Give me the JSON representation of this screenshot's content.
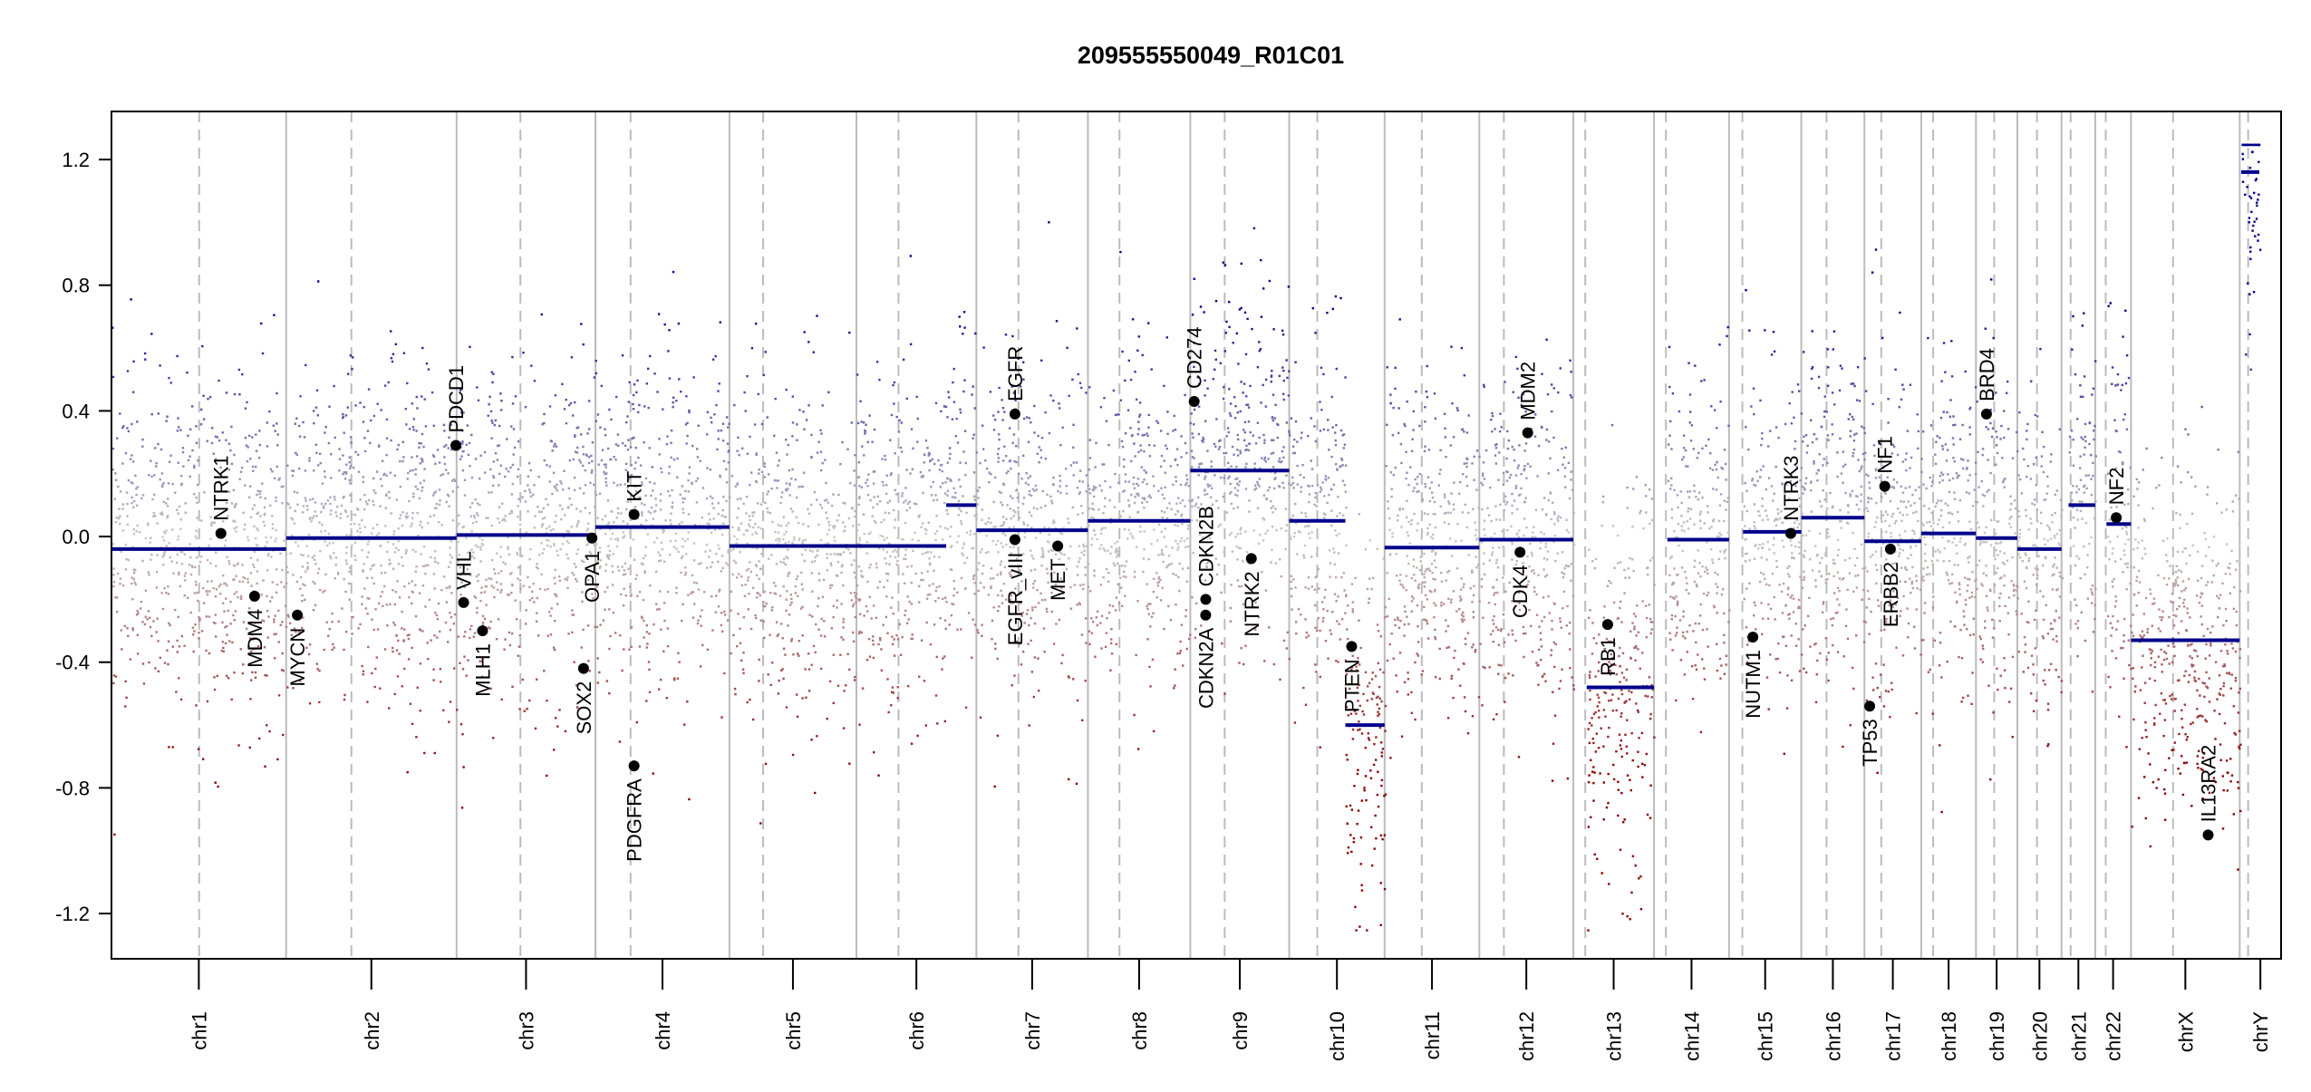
{
  "chart_data": {
    "type": "scatter",
    "title": "209555550049_R01C01",
    "xlabel": "",
    "ylabel": "",
    "ylim": [
      -1.344,
      1.353
    ],
    "yticks": [
      "1.2",
      "0.8",
      "0.4",
      "0.0",
      "-0.4",
      "-0.8",
      "-1.2"
    ],
    "ytick_values": [
      1.2,
      0.8,
      0.4,
      0.0,
      -0.4,
      -0.8,
      -1.2
    ],
    "colors": {
      "gain": "#00008b",
      "neutral": "#c8c8c8",
      "loss": "#8b0000",
      "segment": "#00008b",
      "gene": "#000000"
    },
    "chromosomes": [
      {
        "name": "chr1",
        "length_mb": 249,
        "centromere_mb": 125
      },
      {
        "name": "chr2",
        "length_mb": 243,
        "centromere_mb": 93
      },
      {
        "name": "chr3",
        "length_mb": 198,
        "centromere_mb": 91
      },
      {
        "name": "chr4",
        "length_mb": 191,
        "centromere_mb": 50
      },
      {
        "name": "chr5",
        "length_mb": 181,
        "centromere_mb": 48
      },
      {
        "name": "chr6",
        "length_mb": 171,
        "centromere_mb": 60
      },
      {
        "name": "chr7",
        "length_mb": 159,
        "centromere_mb": 60
      },
      {
        "name": "chr8",
        "length_mb": 146,
        "centromere_mb": 45
      },
      {
        "name": "chr9",
        "length_mb": 141,
        "centromere_mb": 49
      },
      {
        "name": "chr10",
        "length_mb": 136,
        "centromere_mb": 40
      },
      {
        "name": "chr11",
        "length_mb": 135,
        "centromere_mb": 53
      },
      {
        "name": "chr12",
        "length_mb": 134,
        "centromere_mb": 35
      },
      {
        "name": "chr13",
        "length_mb": 115,
        "centromere_mb": 17
      },
      {
        "name": "chr14",
        "length_mb": 107,
        "centromere_mb": 17
      },
      {
        "name": "chr15",
        "length_mb": 103,
        "centromere_mb": 19
      },
      {
        "name": "chr16",
        "length_mb": 90,
        "centromere_mb": 36
      },
      {
        "name": "chr17",
        "length_mb": 81,
        "centromere_mb": 24
      },
      {
        "name": "chr18",
        "length_mb": 78,
        "centromere_mb": 17
      },
      {
        "name": "chr19",
        "length_mb": 59,
        "centromere_mb": 26
      },
      {
        "name": "chr20",
        "length_mb": 63,
        "centromere_mb": 28
      },
      {
        "name": "chr21",
        "length_mb": 48,
        "centromere_mb": 13
      },
      {
        "name": "chr22",
        "length_mb": 51,
        "centromere_mb": 15
      },
      {
        "name": "chrX",
        "length_mb": 155,
        "centromere_mb": 60
      },
      {
        "name": "chrY",
        "length_mb": 59,
        "centromere_mb": 12
      }
    ],
    "segments": [
      {
        "chr": "chr1",
        "start": 0,
        "end": 249,
        "value": -0.04
      },
      {
        "chr": "chr2",
        "start": 0,
        "end": 243,
        "value": -0.005
      },
      {
        "chr": "chr3",
        "start": 0,
        "end": 198,
        "value": 0.005
      },
      {
        "chr": "chr4",
        "start": 0,
        "end": 191,
        "value": 0.03
      },
      {
        "chr": "chr5",
        "start": 0,
        "end": 181,
        "value": -0.03
      },
      {
        "chr": "chr6",
        "start": 0,
        "end": 128,
        "value": -0.03
      },
      {
        "chr": "chr6",
        "start": 128,
        "end": 171,
        "value": 0.1
      },
      {
        "chr": "chr7",
        "start": 0,
        "end": 159,
        "value": 0.02
      },
      {
        "chr": "chr8",
        "start": 0,
        "end": 146,
        "value": 0.05
      },
      {
        "chr": "chr9",
        "start": 0,
        "end": 141,
        "value": 0.21
      },
      {
        "chr": "chr10",
        "start": 0,
        "end": 80,
        "value": 0.05
      },
      {
        "chr": "chr10",
        "start": 80,
        "end": 136,
        "value": -0.6
      },
      {
        "chr": "chr11",
        "start": 0,
        "end": 135,
        "value": -0.035
      },
      {
        "chr": "chr12",
        "start": 0,
        "end": 134,
        "value": -0.01
      },
      {
        "chr": "chr13",
        "start": 19,
        "end": 115,
        "value": -0.48
      },
      {
        "chr": "chr14",
        "start": 19,
        "end": 107,
        "value": -0.01
      },
      {
        "chr": "chr15",
        "start": 20,
        "end": 103,
        "value": 0.015
      },
      {
        "chr": "chr16",
        "start": 0,
        "end": 90,
        "value": 0.06
      },
      {
        "chr": "chr17",
        "start": 0,
        "end": 81,
        "value": -0.015
      },
      {
        "chr": "chr18",
        "start": 0,
        "end": 78,
        "value": 0.01
      },
      {
        "chr": "chr19",
        "start": 0,
        "end": 59,
        "value": -0.005
      },
      {
        "chr": "chr20",
        "start": 0,
        "end": 63,
        "value": -0.04
      },
      {
        "chr": "chr21",
        "start": 10,
        "end": 48,
        "value": 0.1
      },
      {
        "chr": "chr22",
        "start": 16,
        "end": 51,
        "value": 0.04
      },
      {
        "chr": "chrX",
        "start": 0,
        "end": 155,
        "value": -0.33
      },
      {
        "chr": "chrY",
        "start": 2,
        "end": 28,
        "value": 1.16
      }
    ],
    "genes": [
      {
        "name": "NTRK1",
        "chr": "chr1",
        "pos_mb": 156,
        "value": 0.01
      },
      {
        "name": "MDM4",
        "chr": "chr1",
        "pos_mb": 204,
        "value": -0.19
      },
      {
        "name": "MYCN",
        "chr": "chr2",
        "pos_mb": 16,
        "value": -0.25
      },
      {
        "name": "PDCD1",
        "chr": "chr2",
        "pos_mb": 242,
        "value": 0.29
      },
      {
        "name": "VHL",
        "chr": "chr3",
        "pos_mb": 10,
        "value": -0.21
      },
      {
        "name": "MLH1",
        "chr": "chr3",
        "pos_mb": 37,
        "value": -0.3
      },
      {
        "name": "SOX2",
        "chr": "chr3",
        "pos_mb": 181,
        "value": -0.42
      },
      {
        "name": "OPA1",
        "chr": "chr3",
        "pos_mb": 193,
        "value": -0.005
      },
      {
        "name": "KIT",
        "chr": "chr4",
        "pos_mb": 55,
        "value": 0.07
      },
      {
        "name": "PDGFRA",
        "chr": "chr4",
        "pos_mb": 55,
        "value": -0.73
      },
      {
        "name": "EGFR",
        "chr": "chr7",
        "pos_mb": 55,
        "value": 0.39
      },
      {
        "name": "EGFR_vIII",
        "chr": "chr7",
        "pos_mb": 55,
        "value": -0.01
      },
      {
        "name": "MET",
        "chr": "chr7",
        "pos_mb": 116,
        "value": -0.03
      },
      {
        "name": "CD274",
        "chr": "chr9",
        "pos_mb": 5.5,
        "value": 0.43
      },
      {
        "name": "CDKN2A",
        "chr": "chr9",
        "pos_mb": 21.9,
        "value": -0.25
      },
      {
        "name": "CDKN2B",
        "chr": "chr9",
        "pos_mb": 22.0,
        "value": -0.2
      },
      {
        "name": "NTRK2",
        "chr": "chr9",
        "pos_mb": 87,
        "value": -0.07
      },
      {
        "name": "PTEN",
        "chr": "chr10",
        "pos_mb": 89,
        "value": -0.35
      },
      {
        "name": "CDK4",
        "chr": "chr12",
        "pos_mb": 58,
        "value": -0.05
      },
      {
        "name": "MDM2",
        "chr": "chr12",
        "pos_mb": 69,
        "value": 0.33
      },
      {
        "name": "RB1",
        "chr": "chr13",
        "pos_mb": 49,
        "value": -0.28
      },
      {
        "name": "NUTM1",
        "chr": "chr15",
        "pos_mb": 34,
        "value": -0.32
      },
      {
        "name": "NTRK3",
        "chr": "chr15",
        "pos_mb": 88,
        "value": 0.01
      },
      {
        "name": "NF1",
        "chr": "chr17",
        "pos_mb": 29,
        "value": 0.16
      },
      {
        "name": "ERBB2",
        "chr": "chr17",
        "pos_mb": 37,
        "value": -0.04
      },
      {
        "name": "TP53",
        "chr": "chr17",
        "pos_mb": 7.5,
        "value": -0.54
      },
      {
        "name": "BRD4",
        "chr": "chr19",
        "pos_mb": 15,
        "value": 0.39
      },
      {
        "name": "NF2",
        "chr": "chr22",
        "pos_mb": 30,
        "value": 0.06
      },
      {
        "name": "IL13RA2",
        "chr": "chrX",
        "pos_mb": 110,
        "value": -0.95
      }
    ]
  }
}
